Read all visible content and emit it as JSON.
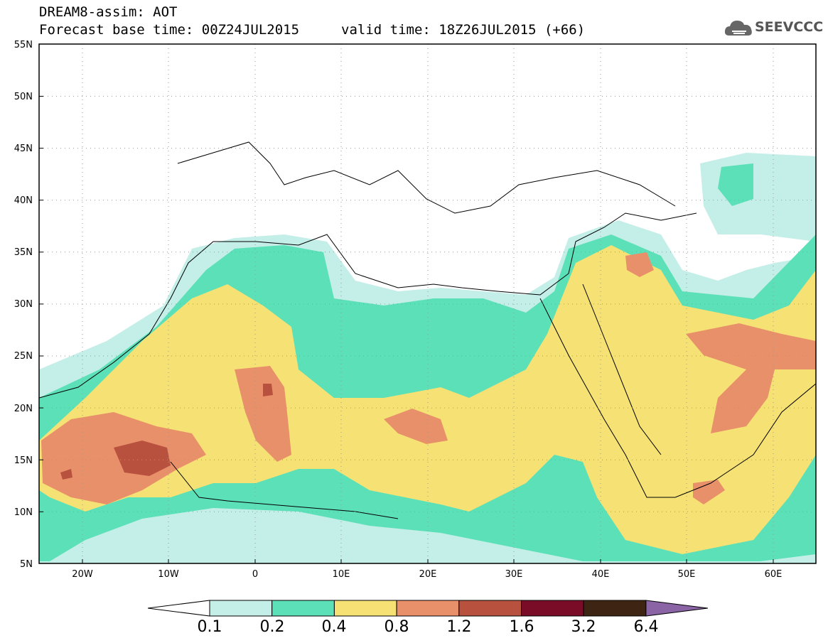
{
  "header": {
    "title": "DREAM8-assim: AOT",
    "base_time": "Forecast base time: 00Z24JUL2015",
    "valid_time": "valid time: 18Z26JUL2015 (+66)",
    "logo_text": "SEEVCCC",
    "logo_icon": "cloud-icon"
  },
  "map": {
    "lat_labels": [
      "55N",
      "50N",
      "45N",
      "40N",
      "35N",
      "30N",
      "25N",
      "20N",
      "15N",
      "10N",
      "5N"
    ],
    "lon_labels": [
      "20W",
      "10W",
      "0",
      "10E",
      "20E",
      "30E",
      "40E",
      "50E",
      "60E"
    ],
    "lat_range": [
      5,
      55
    ],
    "lon_range": [
      -25,
      65
    ],
    "grid": "dotted"
  },
  "colorbar": {
    "levels": [
      "0.1",
      "0.2",
      "0.4",
      "0.8",
      "1.2",
      "1.6",
      "3.2",
      "6.4"
    ],
    "colors": [
      "#ffffff",
      "#c4eee8",
      "#5ce0b8",
      "#f6e274",
      "#e8906a",
      "#b8523e",
      "#7a0c28",
      "#3e2412",
      "#8a64a4"
    ]
  }
}
